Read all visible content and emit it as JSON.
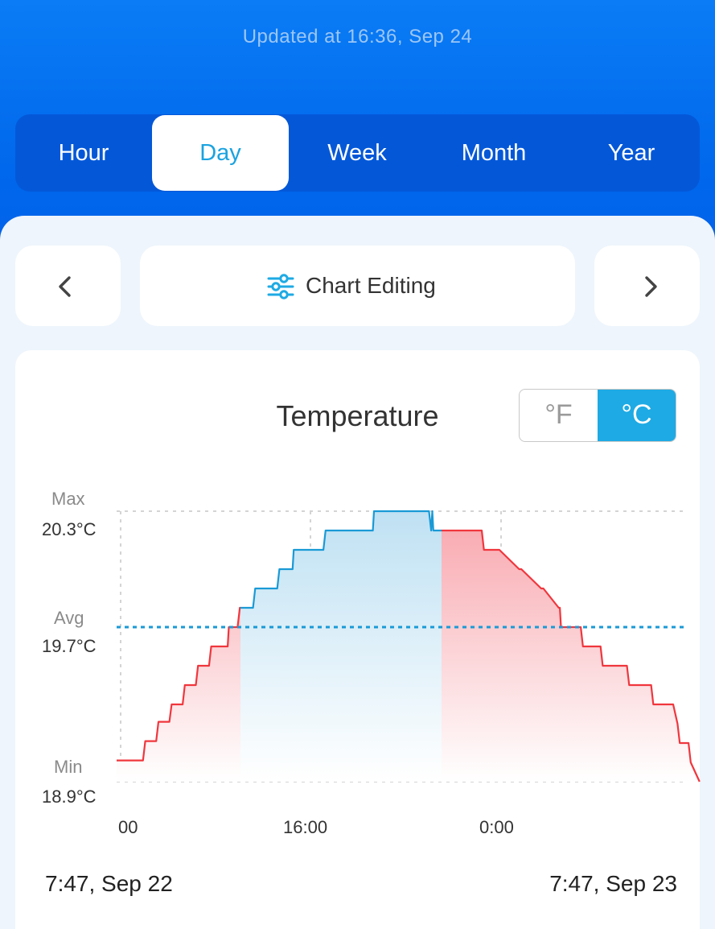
{
  "status": {
    "updated_text": "Updated at 16:36,  Sep 24"
  },
  "period_tabs": [
    {
      "label": "Hour",
      "active": false
    },
    {
      "label": "Day",
      "active": true
    },
    {
      "label": "Week",
      "active": false
    },
    {
      "label": "Month",
      "active": false
    },
    {
      "label": "Year",
      "active": false
    }
  ],
  "toolbar": {
    "chart_editing_label": "Chart Editing",
    "prev_icon": "chevron-left-icon",
    "next_icon": "chevron-right-icon",
    "edit_icon": "sliders-icon"
  },
  "chart_card": {
    "unit_toggle": {
      "f_label": "°F",
      "c_label": "°C",
      "selected": "°C"
    },
    "stats": {
      "max_caption": "Max",
      "max_value": "20.3°C",
      "avg_caption": "Avg",
      "avg_value": "19.7°C",
      "min_caption": "Min",
      "min_value": "18.9°C"
    },
    "range_start": "7:47,  Sep 22",
    "range_end": "7:47,  Sep 23"
  },
  "colors": {
    "accent": "#1eaae4",
    "above_avg": "#1a9ad6",
    "below_avg": "#f0363d",
    "header_blue": "#0068ec"
  },
  "chart_data": {
    "type": "line",
    "title": "Temperature",
    "ylabel": "",
    "xlabel": "",
    "x_tick_labels": [
      "00",
      "16:00",
      "0:00"
    ],
    "ylim": [
      18.9,
      20.3
    ],
    "reference_lines": {
      "max": 20.3,
      "avg": 19.7,
      "min": 18.9
    },
    "grid": true,
    "series": [
      {
        "x_hours": [
          0,
          1.2,
          1.3,
          1.8,
          1.9,
          2.4,
          2.5,
          3.0,
          3.1,
          3.6,
          3.7,
          4.2,
          4.3,
          5.0,
          5.05,
          5.1,
          5.5,
          5.6,
          6.2,
          6.3,
          7.3,
          7.4,
          8.0,
          8.05,
          8.1,
          9.3,
          9.4,
          9.5,
          10.5,
          10.6,
          11.6,
          11.65,
          11.7,
          14.2,
          14.3,
          14.35,
          14.4,
          15.4,
          15.5,
          15.6,
          16.6,
          16.7,
          17.3,
          17.4,
          18.3,
          18.4,
          19.3,
          19.4,
          20.1,
          20.15,
          20.2,
          21.1,
          21.2,
          22.0,
          22.1,
          23.2,
          23.3,
          24.3,
          24.4,
          25.3,
          25.4,
          25.5,
          25.6,
          26.0,
          26.1,
          26.5
        ],
        "y_celsius": [
          19.01,
          19.01,
          19.11,
          19.11,
          19.21,
          19.21,
          19.3,
          19.3,
          19.4,
          19.4,
          19.5,
          19.5,
          19.6,
          19.6,
          19.6,
          19.7,
          19.7,
          19.8,
          19.8,
          19.9,
          19.9,
          20.0,
          20.0,
          20.1,
          20.1,
          20.1,
          20.1,
          20.2,
          20.2,
          20.2,
          20.2,
          20.2,
          20.3,
          20.3,
          20.2,
          20.3,
          20.2,
          20.2,
          20.2,
          20.2,
          20.2,
          20.1,
          20.1,
          20.1,
          20.0,
          20.0,
          19.9,
          19.9,
          19.8,
          19.8,
          19.7,
          19.7,
          19.6,
          19.6,
          19.5,
          19.5,
          19.4,
          19.4,
          19.3,
          19.3,
          19.25,
          19.2,
          19.1,
          19.1,
          19.0,
          18.9
        ]
      }
    ]
  }
}
